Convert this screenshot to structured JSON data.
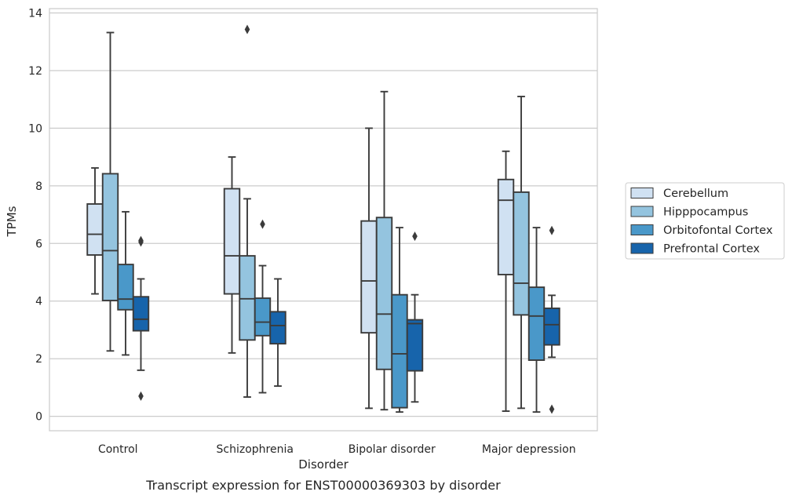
{
  "chart_data": {
    "type": "box",
    "caption": "Transcript expression for ENST00000369303 by disorder",
    "xlabel": "Disorder",
    "ylabel": "TPMs",
    "ylim": [
      -0.5,
      14.15
    ],
    "yticks": [
      0,
      2,
      4,
      6,
      8,
      10,
      12,
      14
    ],
    "grid": "horizontal",
    "legend_position": "right",
    "categories": [
      "Control",
      "Schizophrenia",
      "Bipolar disorder",
      "Major depression"
    ],
    "series": [
      {
        "name": "Cerebellum",
        "color": "#d0e1f2",
        "boxes": [
          {
            "whisker_low": 4.25,
            "q1": 5.6,
            "median": 6.32,
            "q3": 7.37,
            "whisker_high": 8.62,
            "outliers": []
          },
          {
            "whisker_low": 2.2,
            "q1": 4.25,
            "median": 5.57,
            "q3": 7.9,
            "whisker_high": 9.0,
            "outliers": []
          },
          {
            "whisker_low": 0.28,
            "q1": 2.9,
            "median": 4.7,
            "q3": 6.78,
            "whisker_high": 10.0,
            "outliers": []
          },
          {
            "whisker_low": 0.18,
            "q1": 4.92,
            "median": 7.5,
            "q3": 8.22,
            "whisker_high": 9.2,
            "outliers": []
          }
        ]
      },
      {
        "name": "Hipppocampus",
        "color": "#94c4df",
        "boxes": [
          {
            "whisker_low": 2.27,
            "q1": 4.02,
            "median": 5.75,
            "q3": 8.42,
            "whisker_high": 13.32,
            "outliers": []
          },
          {
            "whisker_low": 0.67,
            "q1": 2.65,
            "median": 4.08,
            "q3": 5.57,
            "whisker_high": 7.55,
            "outliers": [
              13.43
            ]
          },
          {
            "whisker_low": 0.23,
            "q1": 1.63,
            "median": 3.55,
            "q3": 6.9,
            "whisker_high": 11.27,
            "outliers": []
          },
          {
            "whisker_low": 0.28,
            "q1": 3.52,
            "median": 4.62,
            "q3": 7.78,
            "whisker_high": 11.1,
            "outliers": []
          }
        ]
      },
      {
        "name": "Orbitofontal Cortex",
        "color": "#4a98c9",
        "boxes": [
          {
            "whisker_low": 2.13,
            "q1": 3.7,
            "median": 4.07,
            "q3": 5.27,
            "whisker_high": 7.1,
            "outliers": []
          },
          {
            "whisker_low": 0.82,
            "q1": 2.8,
            "median": 3.27,
            "q3": 4.1,
            "whisker_high": 5.23,
            "outliers": [
              6.67
            ]
          },
          {
            "whisker_low": 0.15,
            "q1": 0.3,
            "median": 2.17,
            "q3": 4.22,
            "whisker_high": 6.55,
            "outliers": []
          },
          {
            "whisker_low": 0.15,
            "q1": 1.95,
            "median": 3.48,
            "q3": 4.48,
            "whisker_high": 6.55,
            "outliers": []
          }
        ]
      },
      {
        "name": "Prefrontal Cortex",
        "color": "#1764ab",
        "boxes": [
          {
            "whisker_low": 1.6,
            "q1": 2.97,
            "median": 3.37,
            "q3": 4.15,
            "whisker_high": 4.77,
            "outliers": [
              6.1,
              6.05,
              0.7
            ]
          },
          {
            "whisker_low": 1.05,
            "q1": 2.52,
            "median": 3.15,
            "q3": 3.63,
            "whisker_high": 4.77,
            "outliers": []
          },
          {
            "whisker_low": 0.5,
            "q1": 1.58,
            "median": 3.22,
            "q3": 3.35,
            "whisker_high": 4.22,
            "outliers": [
              6.25
            ]
          },
          {
            "whisker_low": 2.05,
            "q1": 2.48,
            "median": 3.18,
            "q3": 3.75,
            "whisker_high": 4.2,
            "outliers": [
              6.45,
              0.25
            ]
          }
        ]
      }
    ]
  }
}
